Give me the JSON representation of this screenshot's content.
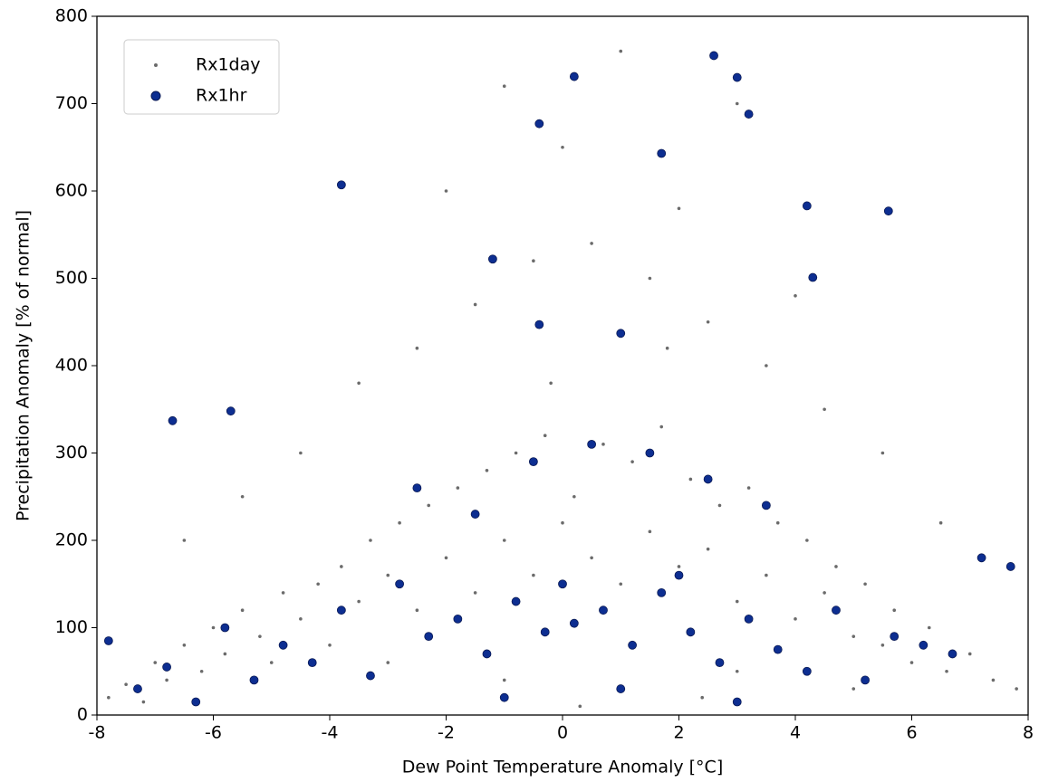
{
  "chart_data": {
    "type": "scatter",
    "xlabel": "Dew Point Temperature Anomaly [°C]",
    "ylabel": "Precipitation Anomaly [% of normal]",
    "xlim": [
      -8,
      8
    ],
    "ylim": [
      0,
      800
    ],
    "xticks": [
      -8,
      -6,
      -4,
      -2,
      0,
      2,
      4,
      6,
      8
    ],
    "yticks": [
      0,
      100,
      200,
      300,
      400,
      500,
      600,
      700,
      800
    ],
    "grid": false,
    "legend": "upper left",
    "series": [
      {
        "name": "Rx1day",
        "color": "#6b6b6b",
        "x": [
          -7.8,
          -7.5,
          -7.2,
          -7.0,
          -6.8,
          -6.5,
          -6.2,
          -6.0,
          -5.8,
          -5.5,
          -5.2,
          -5.0,
          -4.8,
          -4.5,
          -4.2,
          -4.0,
          -3.8,
          -3.5,
          -3.3,
          -3.0,
          -2.8,
          -2.5,
          -2.3,
          -2.0,
          -1.8,
          -1.5,
          -1.3,
          -1.0,
          -0.8,
          -0.5,
          -0.3,
          0.0,
          0.2,
          0.5,
          0.7,
          1.0,
          1.2,
          1.5,
          1.7,
          2.0,
          2.2,
          2.5,
          2.7,
          3.0,
          3.2,
          3.5,
          3.7,
          4.0,
          4.2,
          4.5,
          4.7,
          5.0,
          5.2,
          5.5,
          5.7,
          6.0,
          6.3,
          6.6,
          7.0,
          7.4,
          7.8,
          -6.5,
          -5.5,
          -4.5,
          -3.5,
          -2.5,
          -1.5,
          -0.5,
          0.5,
          1.5,
          2.5,
          3.5,
          4.5,
          5.5,
          6.5,
          -3.0,
          -1.0,
          1.0,
          3.0,
          5.0,
          -2.0,
          0.0,
          2.0,
          4.0,
          -1.0,
          1.0,
          3.0,
          0.3,
          2.4,
          -0.2,
          1.8
        ],
        "values": [
          20,
          35,
          15,
          60,
          40,
          80,
          50,
          100,
          70,
          120,
          90,
          60,
          140,
          110,
          150,
          80,
          170,
          130,
          200,
          160,
          220,
          120,
          240,
          180,
          260,
          140,
          280,
          200,
          300,
          160,
          320,
          220,
          250,
          180,
          310,
          150,
          290,
          210,
          330,
          170,
          270,
          190,
          240,
          130,
          260,
          160,
          220,
          110,
          200,
          140,
          170,
          90,
          150,
          80,
          120,
          60,
          100,
          50,
          70,
          40,
          30,
          200,
          250,
          300,
          380,
          420,
          470,
          520,
          540,
          500,
          450,
          400,
          350,
          300,
          220,
          60,
          40,
          30,
          50,
          30,
          600,
          650,
          580,
          480,
          720,
          760,
          700,
          10,
          20,
          380,
          420
        ]
      },
      {
        "name": "Rx1hr",
        "color": "#0d2e91",
        "x": [
          -7.8,
          -7.3,
          -6.8,
          -6.3,
          -5.8,
          -5.3,
          -4.8,
          -4.3,
          -3.8,
          -3.3,
          -2.8,
          -2.3,
          -1.8,
          -1.3,
          -0.8,
          -0.3,
          0.2,
          0.7,
          1.2,
          1.7,
          2.2,
          2.7,
          3.2,
          3.7,
          4.2,
          4.7,
          5.2,
          5.7,
          6.2,
          6.7,
          7.2,
          7.7,
          -2.5,
          -1.5,
          -0.5,
          0.5,
          1.5,
          2.5,
          3.5,
          -1.0,
          0.0,
          1.0,
          2.0,
          3.0,
          -6.7,
          -5.7,
          -3.8,
          -1.2,
          -0.4,
          0.2,
          1.7,
          2.6,
          3.0,
          3.2,
          4.2,
          5.6,
          -0.4,
          1.0,
          4.3
        ],
        "values": [
          85,
          30,
          55,
          15,
          100,
          40,
          80,
          60,
          120,
          45,
          150,
          90,
          110,
          70,
          130,
          95,
          105,
          120,
          80,
          140,
          95,
          60,
          110,
          75,
          50,
          120,
          40,
          90,
          80,
          70,
          180,
          170,
          260,
          230,
          290,
          310,
          300,
          270,
          240,
          20,
          150,
          30,
          160,
          15,
          337,
          348,
          607,
          522,
          677,
          731,
          643,
          755,
          730,
          688,
          583,
          577,
          447,
          437,
          501
        ]
      }
    ]
  }
}
